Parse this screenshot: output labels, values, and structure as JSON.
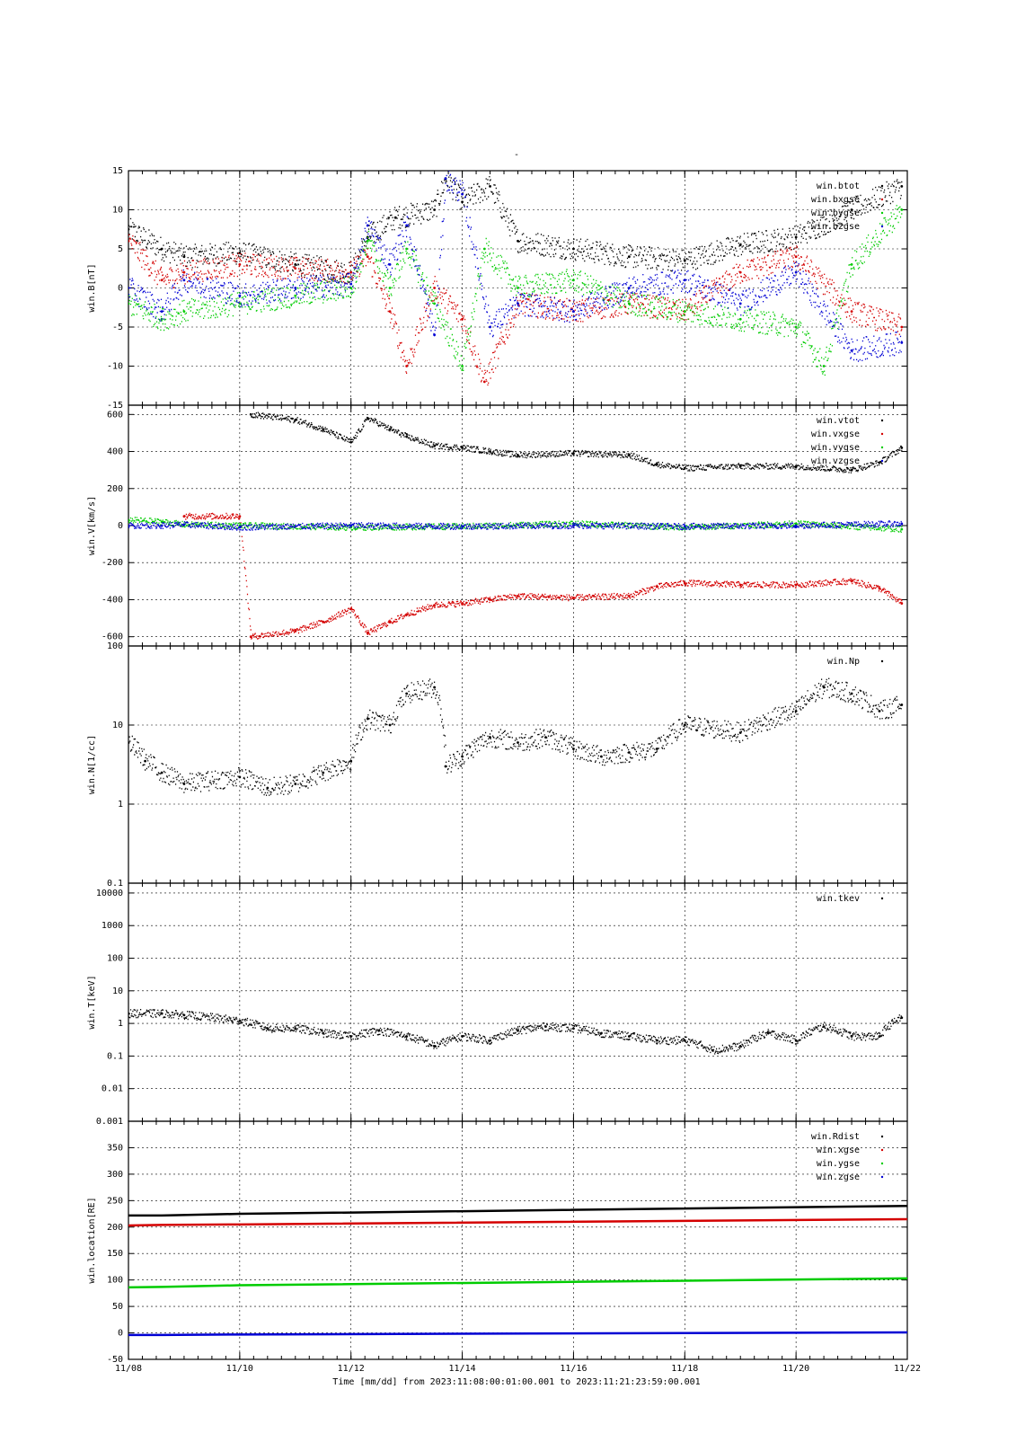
{
  "title": "-",
  "footer": {
    "xlabel": "Time [mm/dd]  from 2023:11:08:00:01:00.001  to  2023:11:21:23:59:00.001"
  },
  "colors": {
    "black": "#000000",
    "red": "#d40000",
    "green": "#00cc00",
    "blue": "#0000d4"
  },
  "chart_data": [
    {
      "type": "scatter",
      "ylabel": "win.B[nT]",
      "ylim": [
        -15,
        15
      ],
      "yticks": [
        15,
        10,
        5,
        0,
        -5,
        -10,
        -15
      ],
      "grid": true,
      "legend_position": "top-right",
      "x_ticks": [
        "11/08",
        "11/10",
        "11/12",
        "11/14",
        "11/16",
        "11/18",
        "11/20",
        "11/22"
      ],
      "x_day_range": [
        8,
        22
      ],
      "series": [
        {
          "name": "win.btot",
          "color": "#000000",
          "x_days": [
            8.0,
            8.6,
            9.0,
            10.0,
            11.0,
            12.0,
            12.3,
            12.8,
            13.5,
            13.7,
            14.0,
            14.5,
            15.0,
            16.0,
            17.0,
            18.0,
            19.0,
            20.0,
            21.0,
            21.9
          ],
          "values": [
            7.5,
            5.0,
            4.0,
            4.5,
            3.0,
            2.0,
            6.5,
            9.0,
            10.0,
            14.0,
            11.0,
            13.0,
            6.0,
            5.0,
            4.0,
            3.5,
            5.5,
            6.5,
            10.0,
            13.0
          ]
        },
        {
          "name": "win.bxgse",
          "color": "#d40000",
          "x_days": [
            8.0,
            8.6,
            9.0,
            10.0,
            11.0,
            12.0,
            12.3,
            12.7,
            13.0,
            13.5,
            14.0,
            14.4,
            15.0,
            16.0,
            17.0,
            18.0,
            19.0,
            20.0,
            21.0,
            21.9
          ],
          "values": [
            6.0,
            1.0,
            2.0,
            3.0,
            2.5,
            2.0,
            4.0,
            -3.0,
            -10.0,
            0.0,
            -4.0,
            -12.0,
            -2.0,
            -3.0,
            -2.0,
            -3.0,
            2.0,
            4.0,
            -3.0,
            -5.0
          ]
        },
        {
          "name": "win.bygse",
          "color": "#00cc00",
          "x_days": [
            8.0,
            8.6,
            9.0,
            10.0,
            11.0,
            12.0,
            12.3,
            12.7,
            13.0,
            13.5,
            14.0,
            14.4,
            15.0,
            16.0,
            17.0,
            18.0,
            19.0,
            20.0,
            20.5,
            21.0,
            21.9
          ],
          "values": [
            -2.0,
            -4.0,
            -3.0,
            -2.0,
            -1.0,
            0.0,
            6.0,
            0.0,
            5.0,
            -2.0,
            -10.0,
            5.0,
            0.0,
            1.0,
            -2.0,
            -3.0,
            -4.0,
            -5.0,
            -10.0,
            3.0,
            10.0
          ]
        },
        {
          "name": "win.bzgse",
          "color": "#0000d4",
          "x_days": [
            8.0,
            8.6,
            9.0,
            10.0,
            11.0,
            12.0,
            12.3,
            12.7,
            13.0,
            13.5,
            13.7,
            14.0,
            14.5,
            15.0,
            16.0,
            17.0,
            18.0,
            19.0,
            20.0,
            21.0,
            21.9
          ],
          "values": [
            0.0,
            -3.0,
            1.0,
            -1.0,
            0.0,
            0.5,
            8.0,
            3.0,
            8.0,
            -6.0,
            14.0,
            12.0,
            -5.0,
            -2.0,
            -3.0,
            0.0,
            1.0,
            -2.0,
            2.0,
            -8.0,
            -7.0
          ]
        }
      ]
    },
    {
      "type": "scatter",
      "ylabel": "win.V[km/s]",
      "ylim": [
        -650,
        650
      ],
      "yticks": [
        600,
        400,
        200,
        0,
        -200,
        -400,
        -600
      ],
      "grid": true,
      "legend_position": "top-right",
      "x_ticks": [
        "11/08",
        "11/10",
        "11/12",
        "11/14",
        "11/16",
        "11/18",
        "11/20",
        "11/22"
      ],
      "x_day_range": [
        8,
        22
      ],
      "series": [
        {
          "name": "win.vtot",
          "color": "#000000",
          "x_days": [
            10.2,
            11.0,
            11.5,
            12.0,
            12.3,
            12.7,
            13.0,
            13.5,
            14.0,
            14.5,
            15.0,
            16.0,
            17.0,
            17.5,
            18.0,
            19.0,
            20.0,
            21.0,
            21.5,
            21.9
          ],
          "values": [
            600,
            570,
            520,
            450,
            580,
            520,
            480,
            430,
            420,
            400,
            380,
            390,
            380,
            330,
            310,
            320,
            320,
            300,
            340,
            420
          ]
        },
        {
          "name": "win.vxgse",
          "color": "#d40000",
          "x_days": [
            9.0,
            10.0,
            10.2,
            11.0,
            11.5,
            12.0,
            12.3,
            12.7,
            13.0,
            13.5,
            14.0,
            14.5,
            15.0,
            16.0,
            17.0,
            17.5,
            18.0,
            19.0,
            20.0,
            21.0,
            21.5,
            21.9
          ],
          "values": [
            50,
            50,
            -600,
            -570,
            -520,
            -450,
            -580,
            -520,
            -480,
            -430,
            -420,
            -400,
            -380,
            -390,
            -380,
            -330,
            -310,
            -320,
            -320,
            -300,
            -340,
            -420
          ]
        },
        {
          "name": "win.vygse",
          "color": "#00cc00",
          "x_days": [
            8.0,
            8.6,
            9.0,
            10.0,
            12.0,
            14.0,
            16.0,
            18.0,
            20.0,
            21.9
          ],
          "values": [
            30,
            20,
            5,
            0,
            -10,
            -5,
            10,
            -10,
            10,
            -20
          ]
        },
        {
          "name": "win.vzgse",
          "color": "#0000d4",
          "x_days": [
            8.0,
            8.6,
            9.0,
            10.0,
            12.0,
            14.0,
            16.0,
            18.0,
            20.0,
            21.9
          ],
          "values": [
            0,
            0,
            5,
            -10,
            0,
            -5,
            0,
            -5,
            0,
            10
          ]
        }
      ]
    },
    {
      "type": "scatter",
      "ylabel": "win.N[1/cc]",
      "log_scale": true,
      "ylim": [
        0.1,
        100
      ],
      "ytick_labels": [
        "100",
        "10",
        "1",
        "0.1"
      ],
      "ytick_values": [
        100,
        10,
        1,
        0.1
      ],
      "grid": true,
      "legend_position": "top-right",
      "x_ticks": [
        "11/08",
        "11/10",
        "11/12",
        "11/14",
        "11/16",
        "11/18",
        "11/20",
        "11/22"
      ],
      "x_day_range": [
        8,
        22
      ],
      "series": [
        {
          "name": "win.Np",
          "color": "#000000",
          "x_days": [
            8.0,
            8.3,
            8.6,
            9.0,
            10.0,
            10.5,
            11.0,
            11.5,
            12.0,
            12.3,
            12.7,
            13.0,
            13.5,
            13.7,
            14.0,
            14.5,
            15.0,
            15.5,
            16.0,
            16.5,
            17.0,
            17.5,
            18.0,
            19.0,
            20.0,
            20.5,
            21.0,
            21.5,
            21.9
          ],
          "values": [
            6.0,
            3.5,
            2.5,
            1.8,
            2.2,
            1.6,
            1.8,
            2.5,
            3.5,
            12.0,
            10.0,
            25.0,
            30.0,
            3.0,
            4.0,
            7.0,
            6.0,
            7.0,
            5.0,
            4.0,
            4.5,
            5.0,
            10.0,
            8.0,
            15.0,
            30.0,
            25.0,
            15.0,
            18.0
          ]
        }
      ]
    },
    {
      "type": "scatter",
      "ylabel": "win.T[keV]",
      "log_scale": true,
      "ylim": [
        0.001,
        20000
      ],
      "ytick_labels": [
        "10000",
        "1000",
        "100",
        "10",
        "1",
        "0.1",
        "0.01",
        "0.001"
      ],
      "ytick_values": [
        10000,
        1000,
        100,
        10,
        1,
        0.1,
        0.01,
        0.001
      ],
      "grid": true,
      "legend_position": "top-right",
      "x_ticks": [
        "11/08",
        "11/10",
        "11/12",
        "11/14",
        "11/16",
        "11/18",
        "11/20",
        "11/22"
      ],
      "x_day_range": [
        8,
        22
      ],
      "series": [
        {
          "name": "win.tkev",
          "color": "#000000",
          "x_days": [
            8.0,
            8.6,
            9.0,
            10.0,
            10.5,
            11.0,
            11.5,
            12.0,
            12.5,
            13.0,
            13.5,
            14.0,
            14.5,
            15.0,
            15.5,
            16.0,
            16.5,
            17.0,
            17.5,
            18.0,
            18.5,
            19.0,
            19.5,
            20.0,
            20.5,
            21.0,
            21.5,
            21.9
          ],
          "values": [
            2.0,
            2.0,
            1.8,
            1.2,
            0.7,
            0.7,
            0.5,
            0.4,
            0.6,
            0.4,
            0.2,
            0.4,
            0.3,
            0.6,
            0.8,
            0.7,
            0.5,
            0.4,
            0.3,
            0.3,
            0.15,
            0.2,
            0.5,
            0.3,
            0.8,
            0.4,
            0.4,
            1.5
          ]
        }
      ]
    },
    {
      "type": "line",
      "ylabel": "win.location[RE]",
      "ylim": [
        -50,
        400
      ],
      "yticks": [
        350,
        300,
        250,
        200,
        150,
        100,
        50,
        0,
        -50
      ],
      "grid": true,
      "legend_position": "top-right",
      "x_ticks": [
        "11/08",
        "11/10",
        "11/12",
        "11/14",
        "11/16",
        "11/18",
        "11/20",
        "11/22"
      ],
      "x_day_range": [
        8,
        22
      ],
      "series": [
        {
          "name": "win.Rdist",
          "color": "#000000",
          "x_days": [
            8.0,
            8.6,
            10.0,
            22.0
          ],
          "values": [
            222,
            222,
            225,
            240
          ]
        },
        {
          "name": "win.xgse",
          "color": "#d40000",
          "x_days": [
            8.0,
            8.6,
            10.0,
            22.0
          ],
          "values": [
            203,
            204,
            205,
            215
          ]
        },
        {
          "name": "win.ygse",
          "color": "#00cc00",
          "x_days": [
            8.0,
            8.6,
            10.0,
            22.0
          ],
          "values": [
            86,
            87,
            90,
            103
          ]
        },
        {
          "name": "win.zgse",
          "color": "#0000d4",
          "x_days": [
            8.0,
            8.6,
            10.0,
            22.0
          ],
          "values": [
            -4,
            -4,
            -3,
            1
          ]
        }
      ]
    }
  ]
}
